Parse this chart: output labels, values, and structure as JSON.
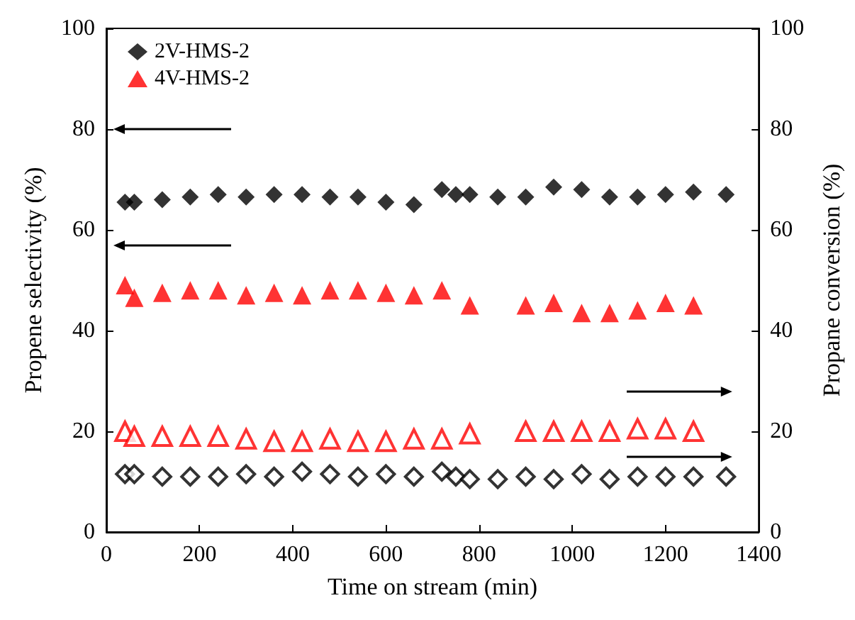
{
  "chart_data": {
    "type": "scatter",
    "xlabel": "Time on stream (min)",
    "ylabel": "Propene selectivity (%)",
    "y2label": "Propane conversion (%)",
    "xlim": [
      0,
      1400
    ],
    "xticks": [
      0,
      200,
      400,
      600,
      800,
      1000,
      1200,
      1400
    ],
    "ylim": [
      0,
      100
    ],
    "yticks": [
      0,
      20,
      40,
      60,
      80,
      100
    ],
    "y2lim": [
      0,
      100
    ],
    "y2ticks": [
      0,
      20,
      40,
      60,
      80,
      100
    ],
    "grid": false,
    "legend": "top left",
    "series": [
      {
        "name": "2V-HMS-2",
        "color": "#000000",
        "marker": "diamond",
        "x": [
          40,
          60,
          120,
          180,
          240,
          300,
          360,
          420,
          480,
          540,
          600,
          660,
          720,
          750,
          780,
          840,
          900,
          960,
          1020,
          1080,
          1140,
          1200,
          1260,
          1330
        ],
        "values": [
          65.5,
          65.5,
          66,
          66.5,
          67,
          66.5,
          67,
          67,
          66.5,
          66.5,
          65.5,
          65,
          68,
          67,
          67,
          66.5,
          66.5,
          68.5,
          68,
          66.5,
          66.5,
          67,
          67.5,
          67
        ]
      },
      {
        "name": "4V-HMS-2",
        "color": "#ff0000",
        "marker": "triangle",
        "x": [
          40,
          60,
          120,
          180,
          240,
          300,
          360,
          420,
          480,
          540,
          600,
          660,
          720,
          780,
          900,
          960,
          1020,
          1080,
          1140,
          1200,
          1260
        ],
        "values": [
          49,
          46.5,
          47.5,
          48,
          48,
          47,
          47.5,
          47,
          48,
          48,
          47.5,
          47,
          48,
          45,
          45,
          45.5,
          43.5,
          43.5,
          44,
          45.5,
          45
        ]
      },
      {
        "color": "#000000",
        "marker": "diamond",
        "axis": "y2",
        "x": [
          40,
          60,
          120,
          180,
          240,
          300,
          360,
          420,
          480,
          540,
          600,
          660,
          720,
          750,
          780,
          840,
          900,
          960,
          1020,
          1080,
          1140,
          1200,
          1260,
          1330
        ],
        "values": [
          11.5,
          11.5,
          11,
          11,
          11,
          11.5,
          11,
          12,
          11.5,
          11,
          11.5,
          11,
          12,
          11,
          10.5,
          10.5,
          11,
          10.5,
          11.5,
          10.5,
          11,
          11,
          11,
          11
        ]
      },
      {
        "color": "#ff0000",
        "marker": "triangle",
        "axis": "y2",
        "x": [
          40,
          60,
          120,
          180,
          240,
          300,
          360,
          420,
          480,
          540,
          600,
          660,
          720,
          780,
          900,
          960,
          1020,
          1080,
          1140,
          1200,
          1260
        ],
        "values": [
          20,
          19,
          19,
          19,
          19,
          18.5,
          18,
          18,
          18.5,
          18,
          18,
          18.5,
          18.5,
          19.5,
          20,
          20,
          20,
          20,
          20.5,
          20.5,
          20
        ]
      }
    ]
  }
}
